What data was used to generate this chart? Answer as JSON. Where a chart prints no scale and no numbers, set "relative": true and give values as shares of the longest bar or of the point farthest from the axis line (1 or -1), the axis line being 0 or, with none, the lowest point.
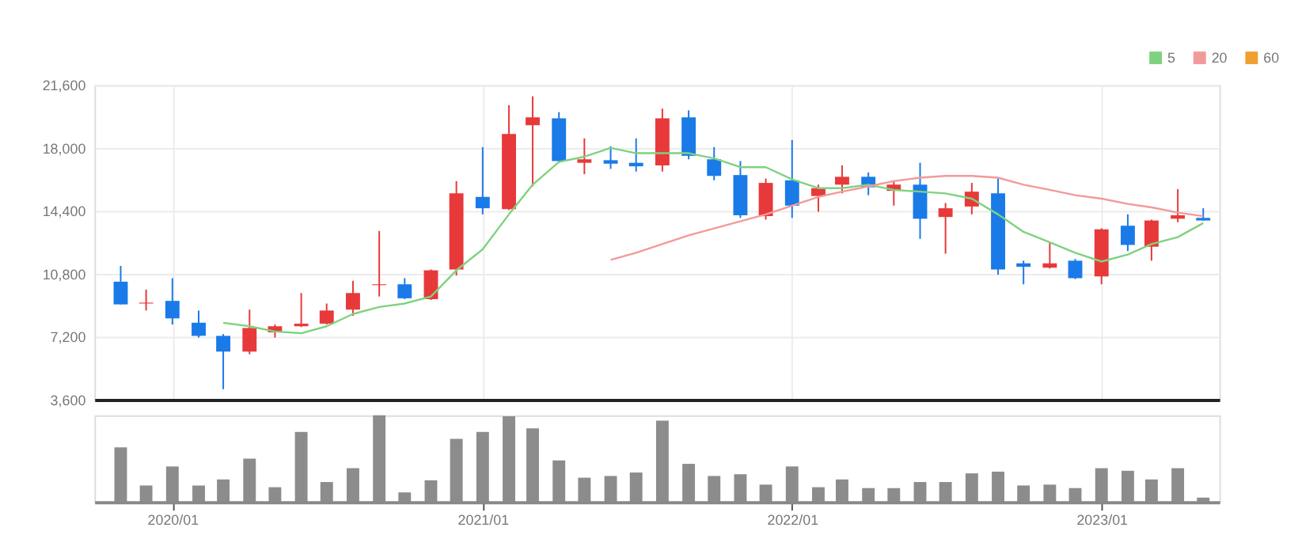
{
  "chart_data": [
    {
      "type": "candlestick",
      "x": [
        "2019-11",
        "2019-12",
        "2020-01",
        "2020-02",
        "2020-03",
        "2020-04",
        "2020-05",
        "2020-06",
        "2020-07",
        "2020-08",
        "2020-09",
        "2020-10",
        "2020-11",
        "2020-12",
        "2021-01",
        "2021-02",
        "2021-03",
        "2021-04",
        "2021-05",
        "2021-06",
        "2021-07",
        "2021-08",
        "2021-09",
        "2021-10",
        "2021-11",
        "2021-12",
        "2022-01",
        "2022-02",
        "2022-03",
        "2022-04",
        "2022-05",
        "2022-06",
        "2022-07",
        "2022-08",
        "2022-09",
        "2022-10",
        "2022-11",
        "2022-12",
        "2023-01",
        "2023-02",
        "2023-03",
        "2023-04",
        "2023-05"
      ],
      "ohlc": [
        [
          10350,
          11250,
          9050,
          9050
        ],
        [
          9100,
          9900,
          8700,
          9150
        ],
        [
          9250,
          10550,
          7900,
          8250
        ],
        [
          8000,
          8700,
          7150,
          7250
        ],
        [
          7250,
          7350,
          4200,
          6350
        ],
        [
          6350,
          8750,
          6200,
          7700
        ],
        [
          7450,
          7900,
          7150,
          7800
        ],
        [
          7800,
          9700,
          7750,
          7950
        ],
        [
          7950,
          9100,
          7900,
          8700
        ],
        [
          8750,
          10400,
          8400,
          9700
        ],
        [
          10150,
          13250,
          9500,
          10200
        ],
        [
          10200,
          10550,
          9350,
          9400
        ],
        [
          9350,
          11050,
          9300,
          11000
        ],
        [
          11050,
          16100,
          10700,
          15400
        ],
        [
          15200,
          18050,
          14200,
          14550
        ],
        [
          14500,
          20450,
          14450,
          18800
        ],
        [
          19300,
          20950,
          15800,
          19750
        ],
        [
          19700,
          20050,
          17150,
          17250
        ],
        [
          17150,
          18550,
          16500,
          17350
        ],
        [
          17300,
          18100,
          16800,
          17100
        ],
        [
          17150,
          18550,
          16650,
          16950
        ],
        [
          17000,
          20250,
          16650,
          19700
        ],
        [
          19750,
          20150,
          17350,
          17550
        ],
        [
          17350,
          18050,
          16150,
          16400
        ],
        [
          16450,
          17250,
          14000,
          14150
        ],
        [
          14100,
          16250,
          13900,
          16000
        ],
        [
          16150,
          18450,
          14000,
          14700
        ],
        [
          15250,
          15900,
          14350,
          15700
        ],
        [
          15900,
          17000,
          15400,
          16350
        ],
        [
          16350,
          16600,
          15300,
          15750
        ],
        [
          15550,
          16150,
          14700,
          15900
        ],
        [
          15900,
          17150,
          12800,
          13950
        ],
        [
          14050,
          14850,
          11950,
          14550
        ],
        [
          14650,
          16000,
          14200,
          15500
        ],
        [
          15400,
          16250,
          10750,
          11050
        ],
        [
          11400,
          11550,
          10200,
          11200
        ],
        [
          11150,
          12600,
          11100,
          11400
        ],
        [
          11550,
          11650,
          10500,
          10550
        ],
        [
          10650,
          13400,
          10200,
          13350
        ],
        [
          13550,
          14200,
          12100,
          12450
        ],
        [
          12350,
          13900,
          11550,
          13850
        ],
        [
          13950,
          15650,
          13750,
          14150
        ],
        [
          14000,
          14550,
          13850,
          13850
        ]
      ],
      "colors": [
        "#1a7ae8",
        "#e8393a",
        "#1a7ae8",
        "#1a7ae8",
        "#1a7ae8",
        "#e8393a",
        "#e8393a",
        "#e8393a",
        "#e8393a",
        "#e8393a",
        "#e8393a",
        "#1a7ae8",
        "#e8393a",
        "#e8393a",
        "#1a7ae8",
        "#e8393a",
        "#e8393a",
        "#1a7ae8",
        "#e8393a",
        "#1a7ae8",
        "#1a7ae8",
        "#e8393a",
        "#1a7ae8",
        "#1a7ae8",
        "#1a7ae8",
        "#e8393a",
        "#1a7ae8",
        "#e8393a",
        "#e8393a",
        "#1a7ae8",
        "#e8393a",
        "#1a7ae8",
        "#e8393a",
        "#e8393a",
        "#1a7ae8",
        "#1a7ae8",
        "#e8393a",
        "#1a7ae8",
        "#e8393a",
        "#1a7ae8",
        "#e8393a",
        "#e8393a",
        "#1a7ae8"
      ],
      "series": [
        {
          "name": "5",
          "type": "line",
          "color": "#7fd27f",
          "values": [
            null,
            null,
            null,
            null,
            8000,
            7800,
            7500,
            7400,
            7800,
            8500,
            8900,
            9100,
            9500,
            11000,
            12200,
            14200,
            15900,
            17200,
            17500,
            18000,
            17700,
            17700,
            17700,
            17400,
            16900,
            16900,
            16200,
            15700,
            15700,
            15900,
            15600,
            15500,
            15400,
            15100,
            14200,
            13200,
            12600,
            12000,
            11500,
            11900,
            12500,
            12900,
            13700
          ]
        },
        {
          "name": "20",
          "type": "line",
          "color": "#f29a9a",
          "values": [
            null,
            null,
            null,
            null,
            null,
            null,
            null,
            null,
            null,
            null,
            null,
            null,
            null,
            null,
            null,
            null,
            null,
            null,
            null,
            11600,
            12000,
            12500,
            13000,
            13400,
            13800,
            14200,
            14700,
            15200,
            15500,
            15800,
            16100,
            16300,
            16400,
            16400,
            16300,
            15900,
            15600,
            15300,
            15100,
            14800,
            14600,
            14300,
            14100
          ]
        },
        {
          "name": "60",
          "type": "line",
          "color": "#f0a030",
          "values": [
            null,
            null,
            null,
            null,
            null,
            null,
            null,
            null,
            null,
            null,
            null,
            null,
            null,
            null,
            null,
            null,
            null,
            null,
            null,
            null,
            null,
            null,
            null,
            null,
            null,
            null,
            null,
            null,
            null,
            null,
            null,
            null,
            null,
            null,
            null,
            null,
            null,
            null,
            null,
            null,
            null,
            null,
            null
          ]
        }
      ],
      "xlim": [
        "2019-10",
        "2023-05-20"
      ],
      "xticks": [
        {
          "value": "2020-01",
          "label": null
        },
        {
          "value": "2021-01",
          "label": null
        },
        {
          "value": "2022-01",
          "label": null
        },
        {
          "value": "2023-01",
          "label": null
        }
      ],
      "ylim": [
        3600,
        21600
      ],
      "yticks": [
        {
          "value": 3600,
          "label": "3,600"
        },
        {
          "value": 7200,
          "label": "7,200"
        },
        {
          "value": 10800,
          "label": "10,800"
        },
        {
          "value": 14400,
          "label": "14,400"
        },
        {
          "value": 18000,
          "label": "18,000"
        },
        {
          "value": 21600,
          "label": "21,600"
        }
      ],
      "grid": true,
      "legend": "top right",
      "tick_labels": "y"
    },
    {
      "type": "bar",
      "relative": true,
      "color": "#8c8c8c",
      "x": [
        "2019-11",
        "2019-12",
        "2020-01",
        "2020-02",
        "2020-03",
        "2020-04",
        "2020-05",
        "2020-06",
        "2020-07",
        "2020-08",
        "2020-09",
        "2020-10",
        "2020-11",
        "2020-12",
        "2021-01",
        "2021-02",
        "2021-03",
        "2021-04",
        "2021-05",
        "2021-06",
        "2021-07",
        "2021-08",
        "2021-09",
        "2021-10",
        "2021-11",
        "2021-12",
        "2022-01",
        "2022-02",
        "2022-03",
        "2022-04",
        "2022-05",
        "2022-06",
        "2022-07",
        "2022-08",
        "2022-09",
        "2022-10",
        "2022-11",
        "2022-12",
        "2023-01",
        "2023-02",
        "2023-03",
        "2023-04",
        "2023-05"
      ],
      "values": [
        0.63,
        0.19,
        0.41,
        0.19,
        0.26,
        0.5,
        0.17,
        0.81,
        0.23,
        0.39,
        1.0,
        0.11,
        0.25,
        0.73,
        0.81,
        0.99,
        0.85,
        0.48,
        0.28,
        0.3,
        0.34,
        0.94,
        0.44,
        0.3,
        0.32,
        0.2,
        0.41,
        0.17,
        0.26,
        0.16,
        0.16,
        0.23,
        0.23,
        0.33,
        0.35,
        0.19,
        0.2,
        0.16,
        0.39,
        0.36,
        0.26,
        0.39,
        0.05
      ],
      "xlim": [
        "2019-10",
        "2023-05-20"
      ],
      "xticks": [
        {
          "value": "2020-01",
          "label": "2020/01"
        },
        {
          "value": "2021-01",
          "label": "2021/01"
        },
        {
          "value": "2022-01",
          "label": "2022/01"
        },
        {
          "value": "2023-01",
          "label": "2023/01"
        }
      ],
      "tick_labels": "x"
    }
  ]
}
